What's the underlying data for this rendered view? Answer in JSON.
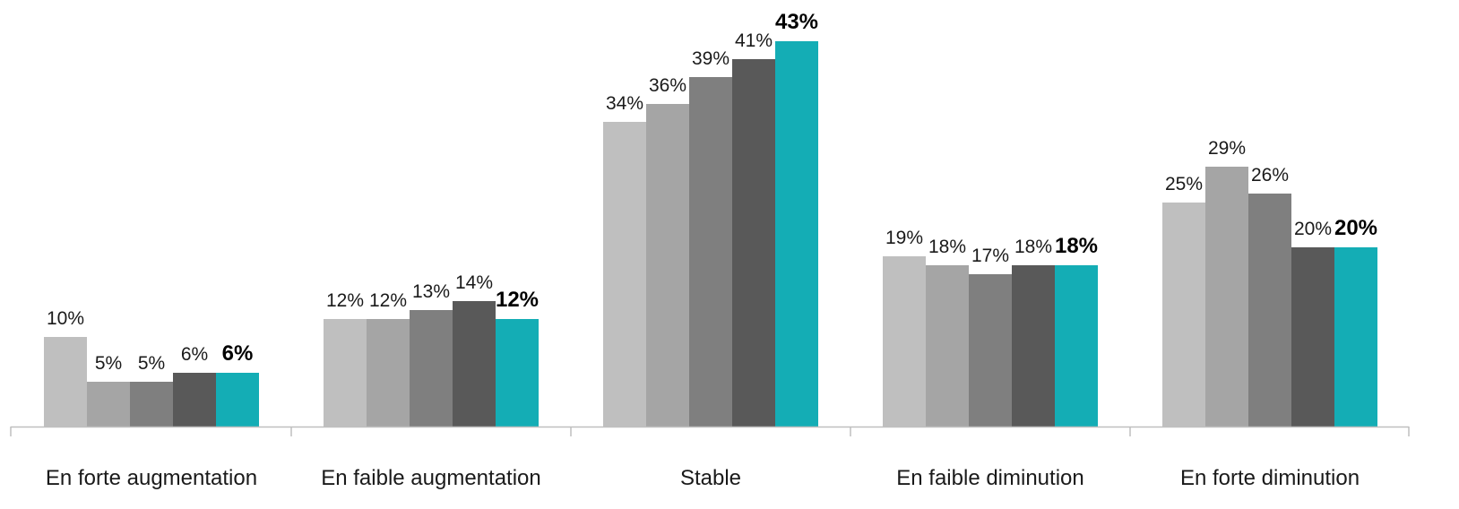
{
  "chart_data": {
    "type": "bar",
    "categories": [
      "En forte augmentation",
      "En faible augmentation",
      "Stable",
      "En faible diminution",
      "En forte diminution"
    ],
    "series": [
      {
        "values": [
          10,
          12,
          34,
          19,
          25
        ],
        "labels": [
          "10%",
          "12%",
          "34%",
          "19%",
          "25%"
        ],
        "color": "#bfbfbf"
      },
      {
        "values": [
          5,
          12,
          36,
          18,
          29
        ],
        "labels": [
          "5%",
          "12%",
          "36%",
          "18%",
          "29%"
        ],
        "color": "#a5a5a5"
      },
      {
        "values": [
          5,
          13,
          39,
          17,
          26
        ],
        "labels": [
          "5%",
          "13%",
          "39%",
          "17%",
          "26%"
        ],
        "color": "#7f7f7f"
      },
      {
        "values": [
          6,
          14,
          41,
          18,
          20
        ],
        "labels": [
          "6%",
          "14%",
          "41%",
          "18%",
          "20%"
        ],
        "color": "#595959"
      },
      {
        "values": [
          6,
          12,
          43,
          18,
          20
        ],
        "labels": [
          "6%",
          "12%",
          "43%",
          "18%",
          "20%"
        ],
        "color": "#14adb5",
        "highlight": true
      }
    ],
    "ylim": [
      0,
      43
    ],
    "grid": false,
    "legend": "none",
    "axis_color": "#bfbfbf"
  }
}
